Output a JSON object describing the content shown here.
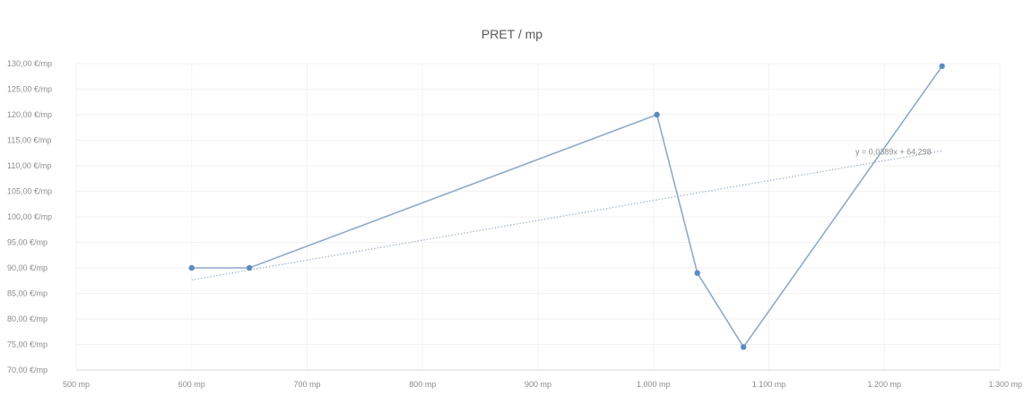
{
  "chart_data": {
    "type": "scatter",
    "title": "PRET / mp",
    "xlabel": "",
    "ylabel": "",
    "xlim": [
      500,
      1300
    ],
    "ylim": [
      70,
      130
    ],
    "x_ticks": [
      500,
      600,
      700,
      800,
      900,
      1000,
      1100,
      1200,
      1300
    ],
    "x_tick_labels": [
      "500 mp",
      "600 mp",
      "700 mp",
      "800 mp",
      "900 mp",
      "1.000 mp",
      "1.100 mp",
      "1.200 mp",
      "1.300 mp"
    ],
    "y_ticks": [
      70,
      75,
      80,
      85,
      90,
      95,
      100,
      105,
      110,
      115,
      120,
      125,
      130
    ],
    "y_tick_labels": [
      "70,00 €/mp",
      "75,00 €/mp",
      "80,00 €/mp",
      "85,00 €/mp",
      "90,00 €/mp",
      "95,00 €/mp",
      "100,00 €/mp",
      "105,00 €/mp",
      "110,00 €/mp",
      "115,00 €/mp",
      "120,00 €/mp",
      "125,00 €/mp",
      "130,00 €/mp"
    ],
    "grid": true,
    "series": [
      {
        "x": [
          600,
          650,
          1003,
          1038,
          1078,
          1250
        ],
        "y": [
          90,
          90,
          120,
          89,
          74.5,
          129.5
        ],
        "connected": true,
        "color": "#8faac8",
        "marker_color": "#5b8bc4"
      }
    ],
    "trendline": {
      "label": "y = 0,0389x + 64,298",
      "slope": 0.0389,
      "intercept": 64.298,
      "x_range": [
        600,
        1250
      ],
      "color": "#9fb3cc",
      "style": "dotted"
    }
  }
}
